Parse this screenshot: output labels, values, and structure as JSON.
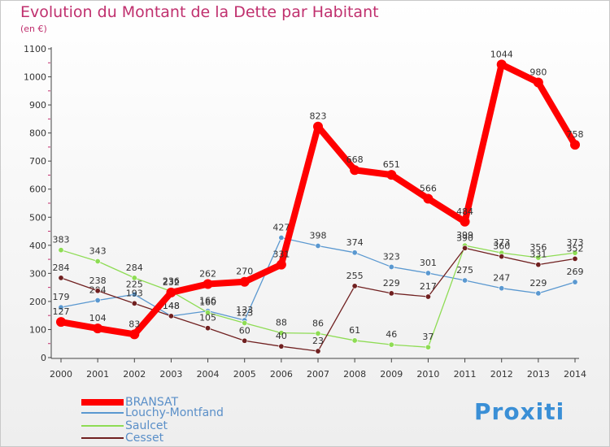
{
  "header": {
    "title": "Evolution du Montant de la Dette par Habitant",
    "unit": "(en €)"
  },
  "logo": {
    "text": "Proxiti"
  },
  "chart_data": {
    "type": "line",
    "title": "Evolution du Montant de la Dette par Habitant",
    "ylabel": "(en €)",
    "xlabel": "",
    "x": [
      "2000",
      "2001",
      "2002",
      "2003",
      "2004",
      "2005",
      "2006",
      "2007",
      "2008",
      "2009",
      "2010",
      "2011",
      "2012",
      "2013",
      "2014"
    ],
    "ylim": [
      0,
      1100
    ],
    "yticks": [
      0,
      100,
      200,
      300,
      400,
      500,
      600,
      700,
      800,
      900,
      1000,
      1100
    ],
    "grid": false,
    "legend_position": "bottom-left",
    "series": [
      {
        "name": "Louchy-Montfand",
        "color": "#5a98d0",
        "values": [
          179,
          204,
          225,
          148,
          166,
          133,
          427,
          398,
          374,
          323,
          301,
          275,
          247,
          229,
          269
        ]
      },
      {
        "name": "Saulcet",
        "color": "#8edc54",
        "values": [
          383,
          343,
          284,
          236,
          160,
          123,
          88,
          86,
          61,
          46,
          37,
          399,
          373,
          356,
          373
        ]
      },
      {
        "name": "Cesset",
        "color": "#702020",
        "values": [
          284,
          238,
          193,
          148,
          105,
          60,
          40,
          23,
          255,
          229,
          217,
          390,
          360,
          331,
          352
        ]
      },
      {
        "name": "BRANSAT",
        "color": "#ff0000",
        "values": [
          127,
          104,
          83,
          232,
          262,
          270,
          331,
          823,
          668,
          651,
          566,
          484,
          1044,
          980,
          758
        ]
      }
    ],
    "legend_order": [
      "BRANSAT",
      "Louchy-Montfand",
      "Saulcet",
      "Cesset"
    ]
  }
}
